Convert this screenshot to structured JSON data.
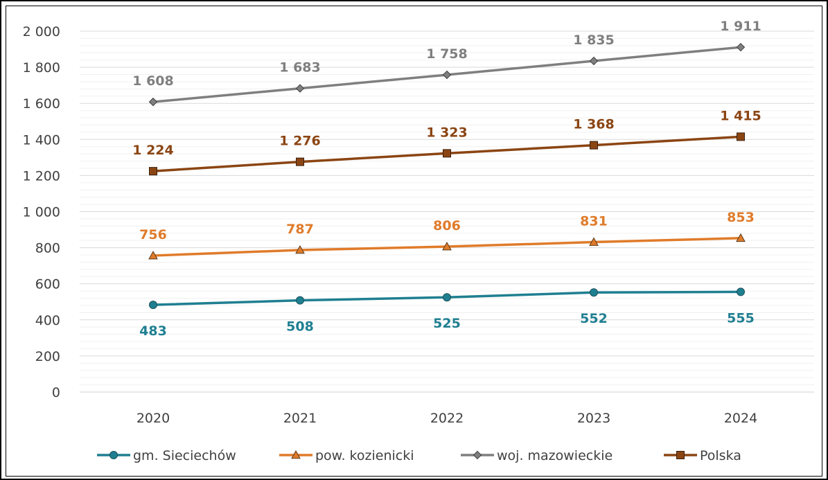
{
  "chart_data": {
    "type": "line",
    "categories": [
      "2020",
      "2021",
      "2022",
      "2023",
      "2024"
    ],
    "ylim": [
      0,
      2000
    ],
    "y_major_step": 200,
    "y_minor_step": 40,
    "y_tick_labels": [
      "0",
      "200",
      "400",
      "600",
      "800",
      "1 000",
      "1 200",
      "1 400",
      "1 600",
      "1 800",
      "2 000"
    ],
    "grid": true,
    "legend_position": "bottom",
    "series": [
      {
        "name": "gm. Sieciechów",
        "values": [
          483,
          508,
          525,
          552,
          555
        ],
        "labels": [
          "483",
          "508",
          "525",
          "552",
          "555"
        ],
        "label_position": "below",
        "color": "#1f7f91",
        "marker": "circle"
      },
      {
        "name": "pow. kozienicki",
        "values": [
          756,
          787,
          806,
          831,
          853
        ],
        "labels": [
          "756",
          "787",
          "806",
          "831",
          "853"
        ],
        "label_position": "above",
        "color": "#e07b2a",
        "marker": "triangle"
      },
      {
        "name": "woj. mazowieckie",
        "values": [
          1608,
          1683,
          1758,
          1835,
          1911
        ],
        "labels": [
          "1 608",
          "1 683",
          "1 758",
          "1 835",
          "1 911"
        ],
        "label_position": "above",
        "color": "#7f7f7f",
        "marker": "diamond"
      },
      {
        "name": "Polska",
        "values": [
          1224,
          1276,
          1323,
          1368,
          1415
        ],
        "labels": [
          "1 224",
          "1 276",
          "1 323",
          "1 368",
          "1 415"
        ],
        "label_position": "above",
        "color": "#8b4513",
        "marker": "square"
      }
    ]
  }
}
